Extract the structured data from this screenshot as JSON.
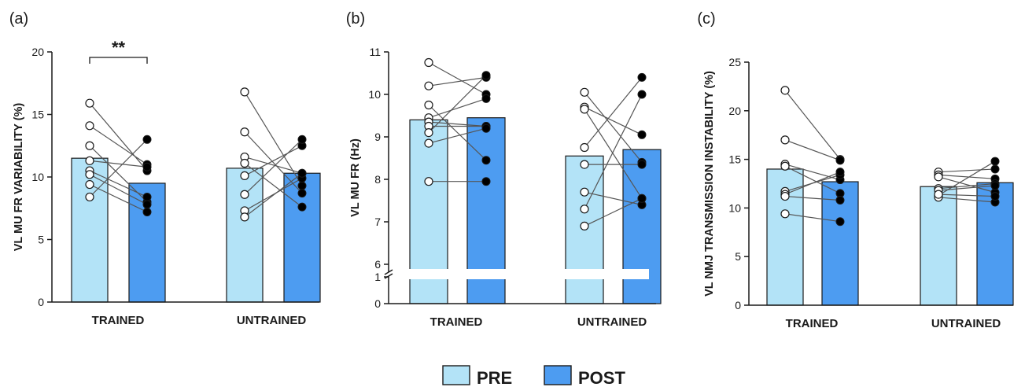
{
  "colors": {
    "pre": "#b3e3f7",
    "post": "#4d9cf1",
    "stroke": "#1a1a1a",
    "line": "#555555"
  },
  "legend": {
    "pre_label": "PRE",
    "post_label": "POST"
  },
  "chart_data": [
    {
      "type": "bar",
      "panel_label": "(a)",
      "ylabel": "VL MU FR VARIABILITY (%)",
      "ylim": [
        0,
        20
      ],
      "yticks": [
        "0",
        "5",
        "10",
        "15",
        "20"
      ],
      "categories": [
        "TRAINED",
        "UNTRAINED"
      ],
      "series": [
        {
          "name": "PRE",
          "values": [
            11.5,
            10.7
          ]
        },
        {
          "name": "POST",
          "values": [
            9.5,
            10.3
          ]
        }
      ],
      "paired_points": [
        {
          "group": "TRAINED",
          "pairs": [
            [
              15.9,
              10.5
            ],
            [
              14.1,
              11.0
            ],
            [
              12.5,
              8.0
            ],
            [
              11.3,
              10.8
            ],
            [
              10.5,
              8.4
            ],
            [
              10.2,
              7.8
            ],
            [
              9.4,
              7.2
            ],
            [
              8.4,
              13.0
            ]
          ]
        },
        {
          "group": "UNTRAINED",
          "pairs": [
            [
              16.8,
              9.3
            ],
            [
              13.6,
              8.7
            ],
            [
              11.6,
              10.3
            ],
            [
              11.1,
              7.6
            ],
            [
              10.1,
              12.5
            ],
            [
              8.6,
              13.0
            ],
            [
              7.3,
              9.9
            ],
            [
              6.8,
              10.3
            ]
          ]
        }
      ],
      "significance": "**"
    },
    {
      "type": "bar",
      "panel_label": "(b)",
      "ylabel": "VL MU FR (Hz)",
      "ylim": [
        6,
        11
      ],
      "axis_break": [
        1,
        6
      ],
      "yticks": [
        "6",
        "7",
        "8",
        "9",
        "10",
        "11"
      ],
      "yticks_low": [
        "0",
        "1"
      ],
      "categories": [
        "TRAINED",
        "UNTRAINED"
      ],
      "series": [
        {
          "name": "PRE",
          "values": [
            9.4,
            8.55
          ]
        },
        {
          "name": "POST",
          "values": [
            9.45,
            8.7
          ]
        }
      ],
      "paired_points": [
        {
          "group": "TRAINED",
          "pairs": [
            [
              10.75,
              10.0
            ],
            [
              10.2,
              10.4
            ],
            [
              9.75,
              8.45
            ],
            [
              9.45,
              9.9
            ],
            [
              9.35,
              9.25
            ],
            [
              9.25,
              9.25
            ],
            [
              9.1,
              10.45
            ],
            [
              8.85,
              9.2
            ],
            [
              7.95,
              7.95
            ]
          ]
        },
        {
          "group": "UNTRAINED",
          "pairs": [
            [
              10.05,
              8.4
            ],
            [
              9.7,
              9.05
            ],
            [
              9.65,
              7.55
            ],
            [
              8.75,
              10.4
            ],
            [
              8.35,
              8.35
            ],
            [
              7.7,
              7.4
            ],
            [
              7.3,
              10.0
            ],
            [
              6.9,
              7.55
            ]
          ]
        }
      ]
    },
    {
      "type": "bar",
      "panel_label": "(c)",
      "ylabel": "VL NMJ TRANSMISSION INSTABILITY (%)",
      "ylim": [
        0,
        25
      ],
      "yticks": [
        "0",
        "5",
        "10",
        "15",
        "20",
        "25"
      ],
      "categories": [
        "TRAINED",
        "UNTRAINED"
      ],
      "series": [
        {
          "name": "PRE",
          "values": [
            14.0,
            12.2
          ]
        },
        {
          "name": "POST",
          "values": [
            12.7,
            12.6
          ]
        }
      ],
      "paired_points": [
        {
          "group": "TRAINED",
          "pairs": [
            [
              22.1,
              15.0
            ],
            [
              17.0,
              14.9
            ],
            [
              14.5,
              12.9
            ],
            [
              14.3,
              11.5
            ],
            [
              11.7,
              13.4
            ],
            [
              11.4,
              13.7
            ],
            [
              11.2,
              10.8
            ],
            [
              9.4,
              8.6
            ]
          ]
        },
        {
          "group": "UNTRAINED",
          "pairs": [
            [
              13.7,
              14.0
            ],
            [
              13.4,
              13.0
            ],
            [
              13.2,
              11.6
            ],
            [
              12.0,
              12.5
            ],
            [
              11.8,
              12.3
            ],
            [
              11.3,
              14.8
            ],
            [
              11.1,
              10.6
            ],
            [
              11.4,
              11.2
            ]
          ]
        }
      ]
    }
  ]
}
